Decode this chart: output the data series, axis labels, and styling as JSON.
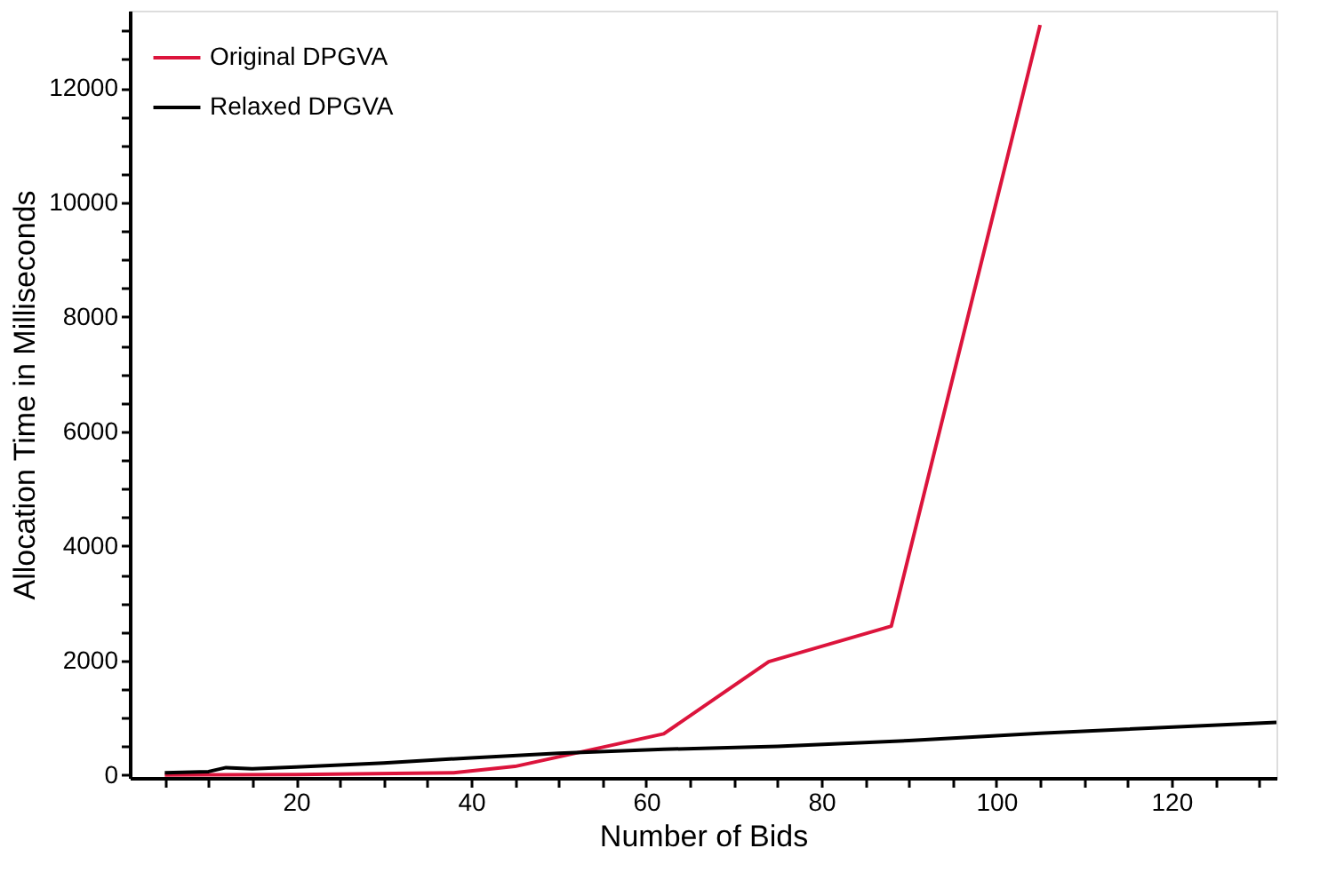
{
  "chart_data": {
    "type": "line",
    "xlabel": "Number of Bids",
    "ylabel": "Allocation Time in Milliseconds",
    "xlim": [
      1,
      132
    ],
    "ylim": [
      -50,
      13350
    ],
    "xticks": [
      {
        "value": 5,
        "label": null
      },
      {
        "value": 10,
        "label": null
      },
      {
        "value": 15,
        "label": null
      },
      20,
      {
        "value": 25,
        "label": null
      },
      {
        "value": 30,
        "label": null
      },
      {
        "value": 35,
        "label": null
      },
      40,
      {
        "value": 45,
        "label": null
      },
      {
        "value": 50,
        "label": null
      },
      {
        "value": 55,
        "label": null
      },
      60,
      {
        "value": 65,
        "label": null
      },
      {
        "value": 70,
        "label": null
      },
      {
        "value": 75,
        "label": null
      },
      80,
      {
        "value": 85,
        "label": null
      },
      {
        "value": 90,
        "label": null
      },
      {
        "value": 95,
        "label": null
      },
      100,
      {
        "value": 105,
        "label": null
      },
      {
        "value": 110,
        "label": null
      },
      {
        "value": 115,
        "label": null
      },
      120,
      {
        "value": 125,
        "label": null
      },
      {
        "value": 130,
        "label": null
      }
    ],
    "yticks": [
      0,
      {
        "value": 500,
        "label": null
      },
      {
        "value": 1000,
        "label": null
      },
      {
        "value": 1500,
        "label": null
      },
      2000,
      {
        "value": 2500,
        "label": null
      },
      {
        "value": 3000,
        "label": null
      },
      {
        "value": 3500,
        "label": null
      },
      4000,
      {
        "value": 4500,
        "label": null
      },
      {
        "value": 5000,
        "label": null
      },
      {
        "value": 5500,
        "label": null
      },
      6000,
      {
        "value": 6500,
        "label": null
      },
      {
        "value": 7000,
        "label": null
      },
      {
        "value": 7500,
        "label": null
      },
      8000,
      {
        "value": 8500,
        "label": null
      },
      {
        "value": 9000,
        "label": null
      },
      {
        "value": 9500,
        "label": null
      },
      10000,
      {
        "value": 10500,
        "label": null
      },
      {
        "value": 11000,
        "label": null
      },
      {
        "value": 11500,
        "label": null
      },
      12000,
      {
        "value": 12500,
        "label": null
      },
      {
        "value": 13000,
        "label": null
      }
    ],
    "grid": false,
    "legend": "top left",
    "marker": "none",
    "line_style": "solid",
    "series": [
      {
        "name": "Original DPGVA",
        "color": "#dc143c",
        "x": [
          5,
          10,
          20,
          38,
          45,
          62,
          74,
          88,
          105
        ],
        "values": [
          0,
          5,
          10,
          40,
          150,
          720,
          1980,
          2600,
          13100
        ]
      },
      {
        "name": "Relaxed DPGVA",
        "color": "#000000",
        "x": [
          5,
          10,
          12,
          15,
          20,
          30,
          40,
          50,
          62,
          75,
          90,
          105,
          132
        ],
        "values": [
          40,
          60,
          130,
          110,
          140,
          210,
          300,
          380,
          450,
          500,
          600,
          730,
          920
        ]
      }
    ]
  }
}
